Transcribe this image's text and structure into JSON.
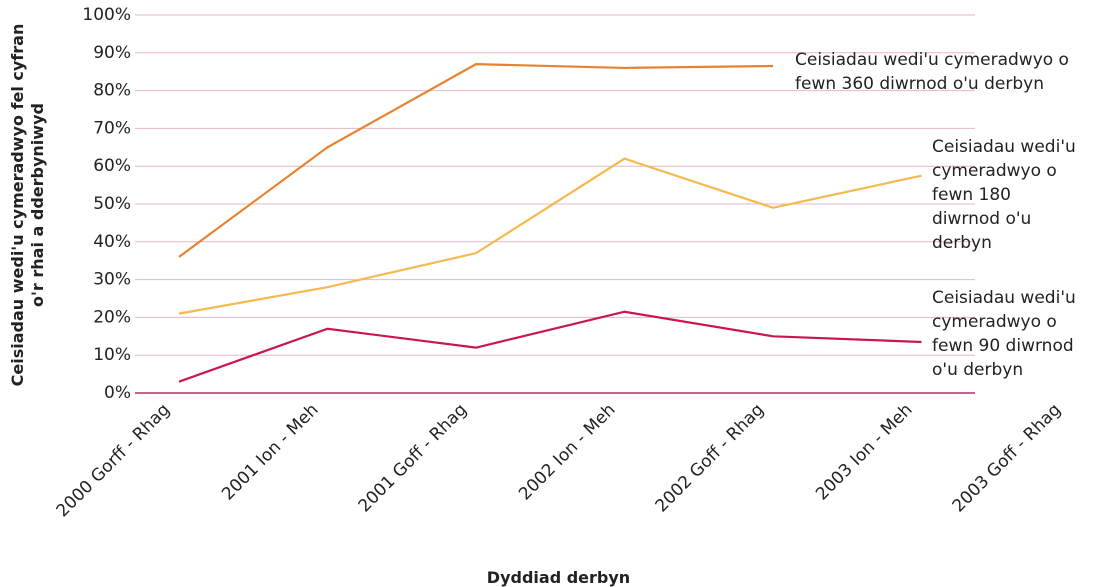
{
  "chart_data": {
    "type": "line",
    "y_label": "Ceisiadau wedi'u cymeradwyo fel cyfran o'r rhai a dderbyniwyd",
    "x_label": "Dyddiad derbyn",
    "categories": [
      "2000 Gorff - Rhag",
      "2001 Ion - Meh",
      "2001 Goff - Rhag",
      "2002 Ion - Meh",
      "2002 Goff - Rhag",
      "2003 Ion - Meh",
      "2003 Goff - Rhag"
    ],
    "series": [
      {
        "name": "Ceisiadau wedi'u cymeradwyo o fewn 360 diwrnod o'u derbyn",
        "color": "#e8822e",
        "values": [
          36,
          65,
          87,
          86,
          86.5,
          null,
          null
        ]
      },
      {
        "name": "Ceisiadau wedi'u cymeradwyo o fewn 180 diwrnod o'u derbyn",
        "color": "#f5b94f",
        "values": [
          21,
          28,
          37,
          62,
          49,
          57.5,
          null
        ]
      },
      {
        "name": "Ceisiadau wedi'u cymeradwyo o fewn 90 diwrnod o'u derbyn",
        "color": "#c8174f",
        "values": [
          3,
          17,
          12,
          21.5,
          15,
          13.5,
          null
        ]
      }
    ],
    "ylim": [
      0,
      100
    ],
    "yticks": [
      {
        "value": 0,
        "label": "0%"
      },
      {
        "value": 10,
        "label": "10%"
      },
      {
        "value": 20,
        "label": "20%"
      },
      {
        "value": 30,
        "label": "30%"
      },
      {
        "value": 40,
        "label": "40%"
      },
      {
        "value": 50,
        "label": "50%"
      },
      {
        "value": 60,
        "label": "60%"
      },
      {
        "value": 70,
        "label": "70%"
      },
      {
        "value": 80,
        "label": "80%"
      },
      {
        "value": 90,
        "label": "90%"
      },
      {
        "value": 100,
        "label": "100%"
      }
    ],
    "grid": true
  }
}
